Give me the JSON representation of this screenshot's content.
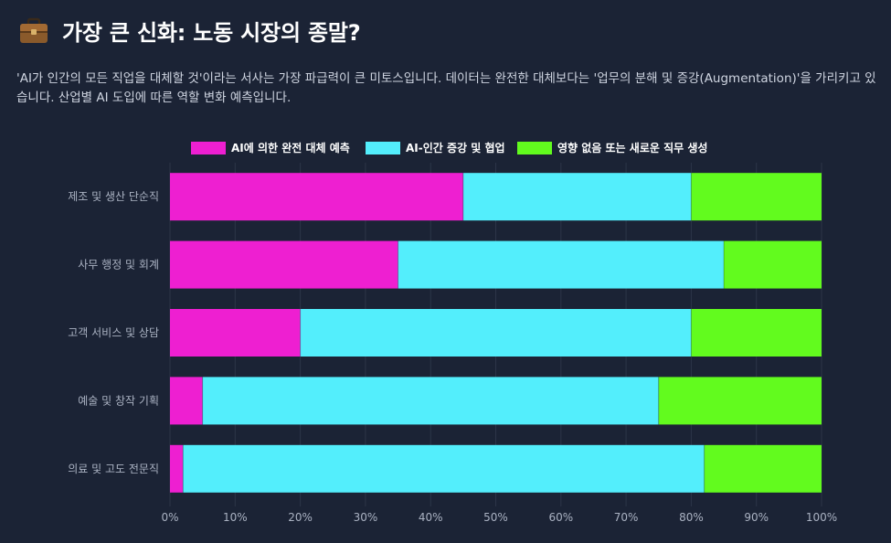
{
  "header": {
    "icon": "briefcase-icon",
    "title": "가장 큰 신화: 노동 시장의 종말?"
  },
  "description": "'AI가 인간의 모든 직업을 대체할 것'이라는 서사는 가장 파급력이 큰 미토스입니다. 데이터는 완전한 대체보다는 '업무의 분해 및 증강(Augmentation)'을 가리키고 있습니다. 산업별 AI 도입에 따른 역할 변화 예측입니다.",
  "colors": {
    "background": "#1b2335",
    "replace": "#ee1fd1",
    "augment": "#53eefc",
    "new": "#62fb1e",
    "grid": "#2c3548",
    "tick": "#aab2c2"
  },
  "chart_data": {
    "type": "bar",
    "orientation": "horizontal",
    "stacked": true,
    "categories": [
      "제조 및 생산 단순직",
      "사무 행정 및 회계",
      "고객 서비스 및 상담",
      "예술 및 창작 기획",
      "의료 및 고도 전문직"
    ],
    "series": [
      {
        "name": "AI에 의한 완전 대체 예측",
        "values": [
          45,
          35,
          20,
          5,
          2
        ]
      },
      {
        "name": "AI-인간 증강 및 협업",
        "values": [
          35,
          50,
          60,
          70,
          80
        ]
      },
      {
        "name": "영향 없음 또는 새로운 직무 생성",
        "values": [
          20,
          15,
          20,
          25,
          18
        ]
      }
    ],
    "xlim": [
      0,
      100
    ],
    "x_ticks": [
      "0%",
      "10%",
      "20%",
      "30%",
      "40%",
      "50%",
      "60%",
      "70%",
      "80%",
      "90%",
      "100%"
    ],
    "legend_position": "top",
    "grid": true
  }
}
